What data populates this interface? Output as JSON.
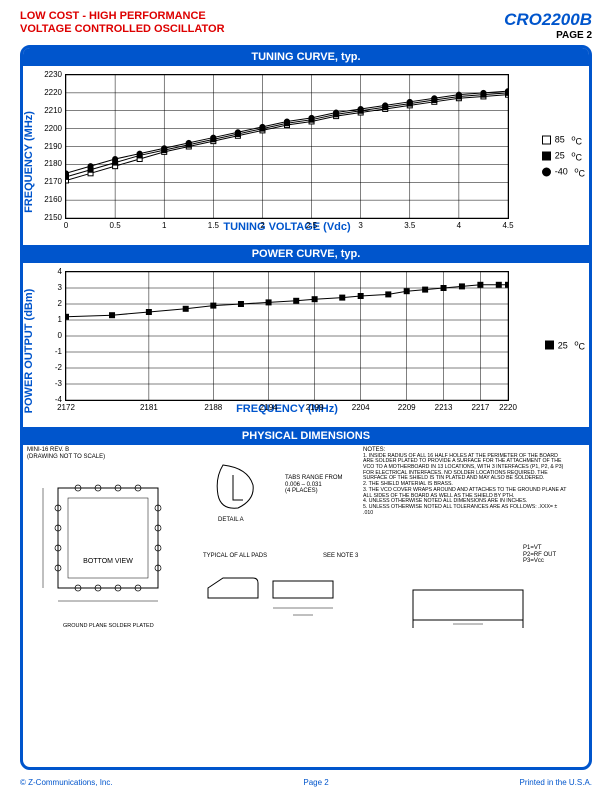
{
  "header": {
    "left_line1": "LOW COST - HIGH PERFORMANCE",
    "left_line2": "VOLTAGE CONTROLLED OSCILLATOR",
    "part": "CRO2200B",
    "page_label": "PAGE 2"
  },
  "colors": {
    "accent": "#0055cc",
    "headline": "#d00",
    "plot_bg": "#ffffff",
    "grid": "#000000"
  },
  "tuning_curve": {
    "title": "TUNING CURVE, typ.",
    "ylabel": "FREQUENCY (MHz)",
    "xlabel": "TUNING VOLTAGE (Vdc)",
    "ylim": [
      2150,
      2230
    ],
    "ytick_step": 10,
    "xlim": [
      0,
      4.5
    ],
    "xtick_step": 0.5,
    "label_fontsize": 11,
    "tick_fontsize": 8,
    "line_width": 1,
    "marker_size": 5,
    "marker_stroke": "#000",
    "series": [
      {
        "name": "85",
        "unit": "°C",
        "marker": "open-square",
        "fill": "#ffffff",
        "x": [
          0,
          0.25,
          0.5,
          0.75,
          1,
          1.25,
          1.5,
          1.75,
          2,
          2.25,
          2.5,
          2.75,
          3,
          3.25,
          3.5,
          3.75,
          4,
          4.25,
          4.5
        ],
        "y": [
          2171,
          2175,
          2179,
          2183,
          2187,
          2190,
          2193,
          2196,
          2199,
          2202,
          2204,
          2207,
          2209,
          2211,
          2213,
          2215,
          2217,
          2218,
          2219
        ]
      },
      {
        "name": "25",
        "unit": "°C",
        "marker": "solid-square",
        "fill": "#000000",
        "x": [
          0,
          0.25,
          0.5,
          0.75,
          1,
          1.25,
          1.5,
          1.75,
          2,
          2.25,
          2.5,
          2.75,
          3,
          3.25,
          3.5,
          3.75,
          4,
          4.25,
          4.5
        ],
        "y": [
          2173,
          2177,
          2181,
          2185,
          2188,
          2191,
          2194,
          2197,
          2200,
          2203,
          2205,
          2208,
          2210,
          2212,
          2214,
          2216,
          2218,
          2219,
          2220
        ]
      },
      {
        "name": "-40",
        "unit": "°C",
        "marker": "solid-circle",
        "fill": "#000000",
        "x": [
          0,
          0.25,
          0.5,
          0.75,
          1,
          1.25,
          1.5,
          1.75,
          2,
          2.25,
          2.5,
          2.75,
          3,
          3.25,
          3.5,
          3.75,
          4,
          4.25,
          4.5
        ],
        "y": [
          2175,
          2179,
          2183,
          2186,
          2189,
          2192,
          2195,
          2198,
          2201,
          2204,
          2206,
          2209,
          2211,
          2213,
          2215,
          2217,
          2219,
          2220,
          2221
        ]
      }
    ]
  },
  "power_curve": {
    "title": "POWER CURVE, typ.",
    "ylabel": "POWER OUTPUT (dBm)",
    "xlabel": "FREQUENCY (MHz)",
    "ylim": [
      -4,
      4
    ],
    "ytick_step": 1,
    "xticks": [
      2172,
      2181,
      2188,
      2194,
      2199,
      2204,
      2209,
      2213,
      2217,
      2220
    ],
    "label_fontsize": 11,
    "tick_fontsize": 8,
    "line_width": 1,
    "marker_size": 5,
    "marker_stroke": "#000",
    "series": [
      {
        "name": "25",
        "unit": "°C",
        "marker": "solid-square",
        "fill": "#000000",
        "x": [
          2172,
          2177,
          2181,
          2185,
          2188,
          2191,
          2194,
          2197,
          2199,
          2202,
          2204,
          2207,
          2209,
          2211,
          2213,
          2215,
          2217,
          2219,
          2220
        ],
        "y": [
          1.2,
          1.3,
          1.5,
          1.7,
          1.9,
          2.0,
          2.1,
          2.2,
          2.3,
          2.4,
          2.5,
          2.6,
          2.8,
          2.9,
          3.0,
          3.1,
          3.2,
          3.2,
          3.2
        ]
      }
    ]
  },
  "physical": {
    "title": "PHYSICAL DIMENSIONS",
    "drawing_ref": "MINI-16   REV. B",
    "drawing_note": "(DRAWING NOT TO SCALE)",
    "detail_label": "DETAIL A",
    "tabs_note_1": "TABS RANGE FROM",
    "tabs_note_2": "0.006 – 0.031",
    "tabs_note_3": "(4 PLACES)",
    "pads_note": "TYPICAL OF ALL PADS",
    "see_note_3": "SEE NOTE 3",
    "see_detail": "SEE DETAIL 'A'",
    "bottom_view": "BOTTOM VIEW",
    "ground_plane": "GROUND PLANE SOLDER PLATED",
    "notes_heading": "NOTES:",
    "notes": [
      "1. INSIDE RADIUS OF ALL 16 HALF HOLES AT THE PERIMETER OF THE BOARD ARE SOLDER PLATED TO PROVIDE A SURFACE FOR THE ATTACHMENT OF THE VCO TO A MOTHERBOARD IN 13 LOCATIONS, WITH 3 INTERFACES (P1, P2, & P3) FOR ELECTRICAL INTERFACES. NO SOLDER LOCATIONS REQUIRED. THE SURFACE OF THE SHIELD IS TIN PLATED AND MAY ALSO BE SOLDERED.",
      "2. THE SHIELD MATERIAL IS BRASS.",
      "3. THE VCO COVER WRAPS AROUND AND ATTACHES TO THE GROUND PLANE AT ALL SIDES OF THE BOARD AS WELL AS THE SHIELD BY PTH.",
      "4. UNLESS OTHERWISE NOTED ALL DIMENSIONS ARE IN INCHES.",
      "5. UNLESS OTHERWISE NOTED ALL TOLERANCES ARE AS FOLLOWS:  .XXX= ± .010"
    ],
    "pin_notes": [
      "P1=VT",
      "P2=RF OUT",
      "P3=Vcc"
    ],
    "dims": {
      ".390": ".390",
      ".190": ".190",
      ".090": ".090",
      ".475": ".475",
      ".450": ".450",
      ".395": ".395",
      ".380": ".380",
      ".325": ".325",
      ".260": ".260",
      ".195": ".195",
      ".025": ".025",
      "0.033": "0.033",
      "0.020": "0.020",
      ".070": ".070",
      ".114": ".114",
      ".026": ".026",
      ".234": ".234",
      ".152": ".152",
      ".220": ".220",
      ".076": ".076",
      ".037": ".037",
      ".455": ".455",
      ".070_typ": ".070 TYP"
    }
  },
  "footer": {
    "left": "© Z-Communications, Inc.",
    "center": "Page 2",
    "right": "Printed in the U.S.A."
  }
}
